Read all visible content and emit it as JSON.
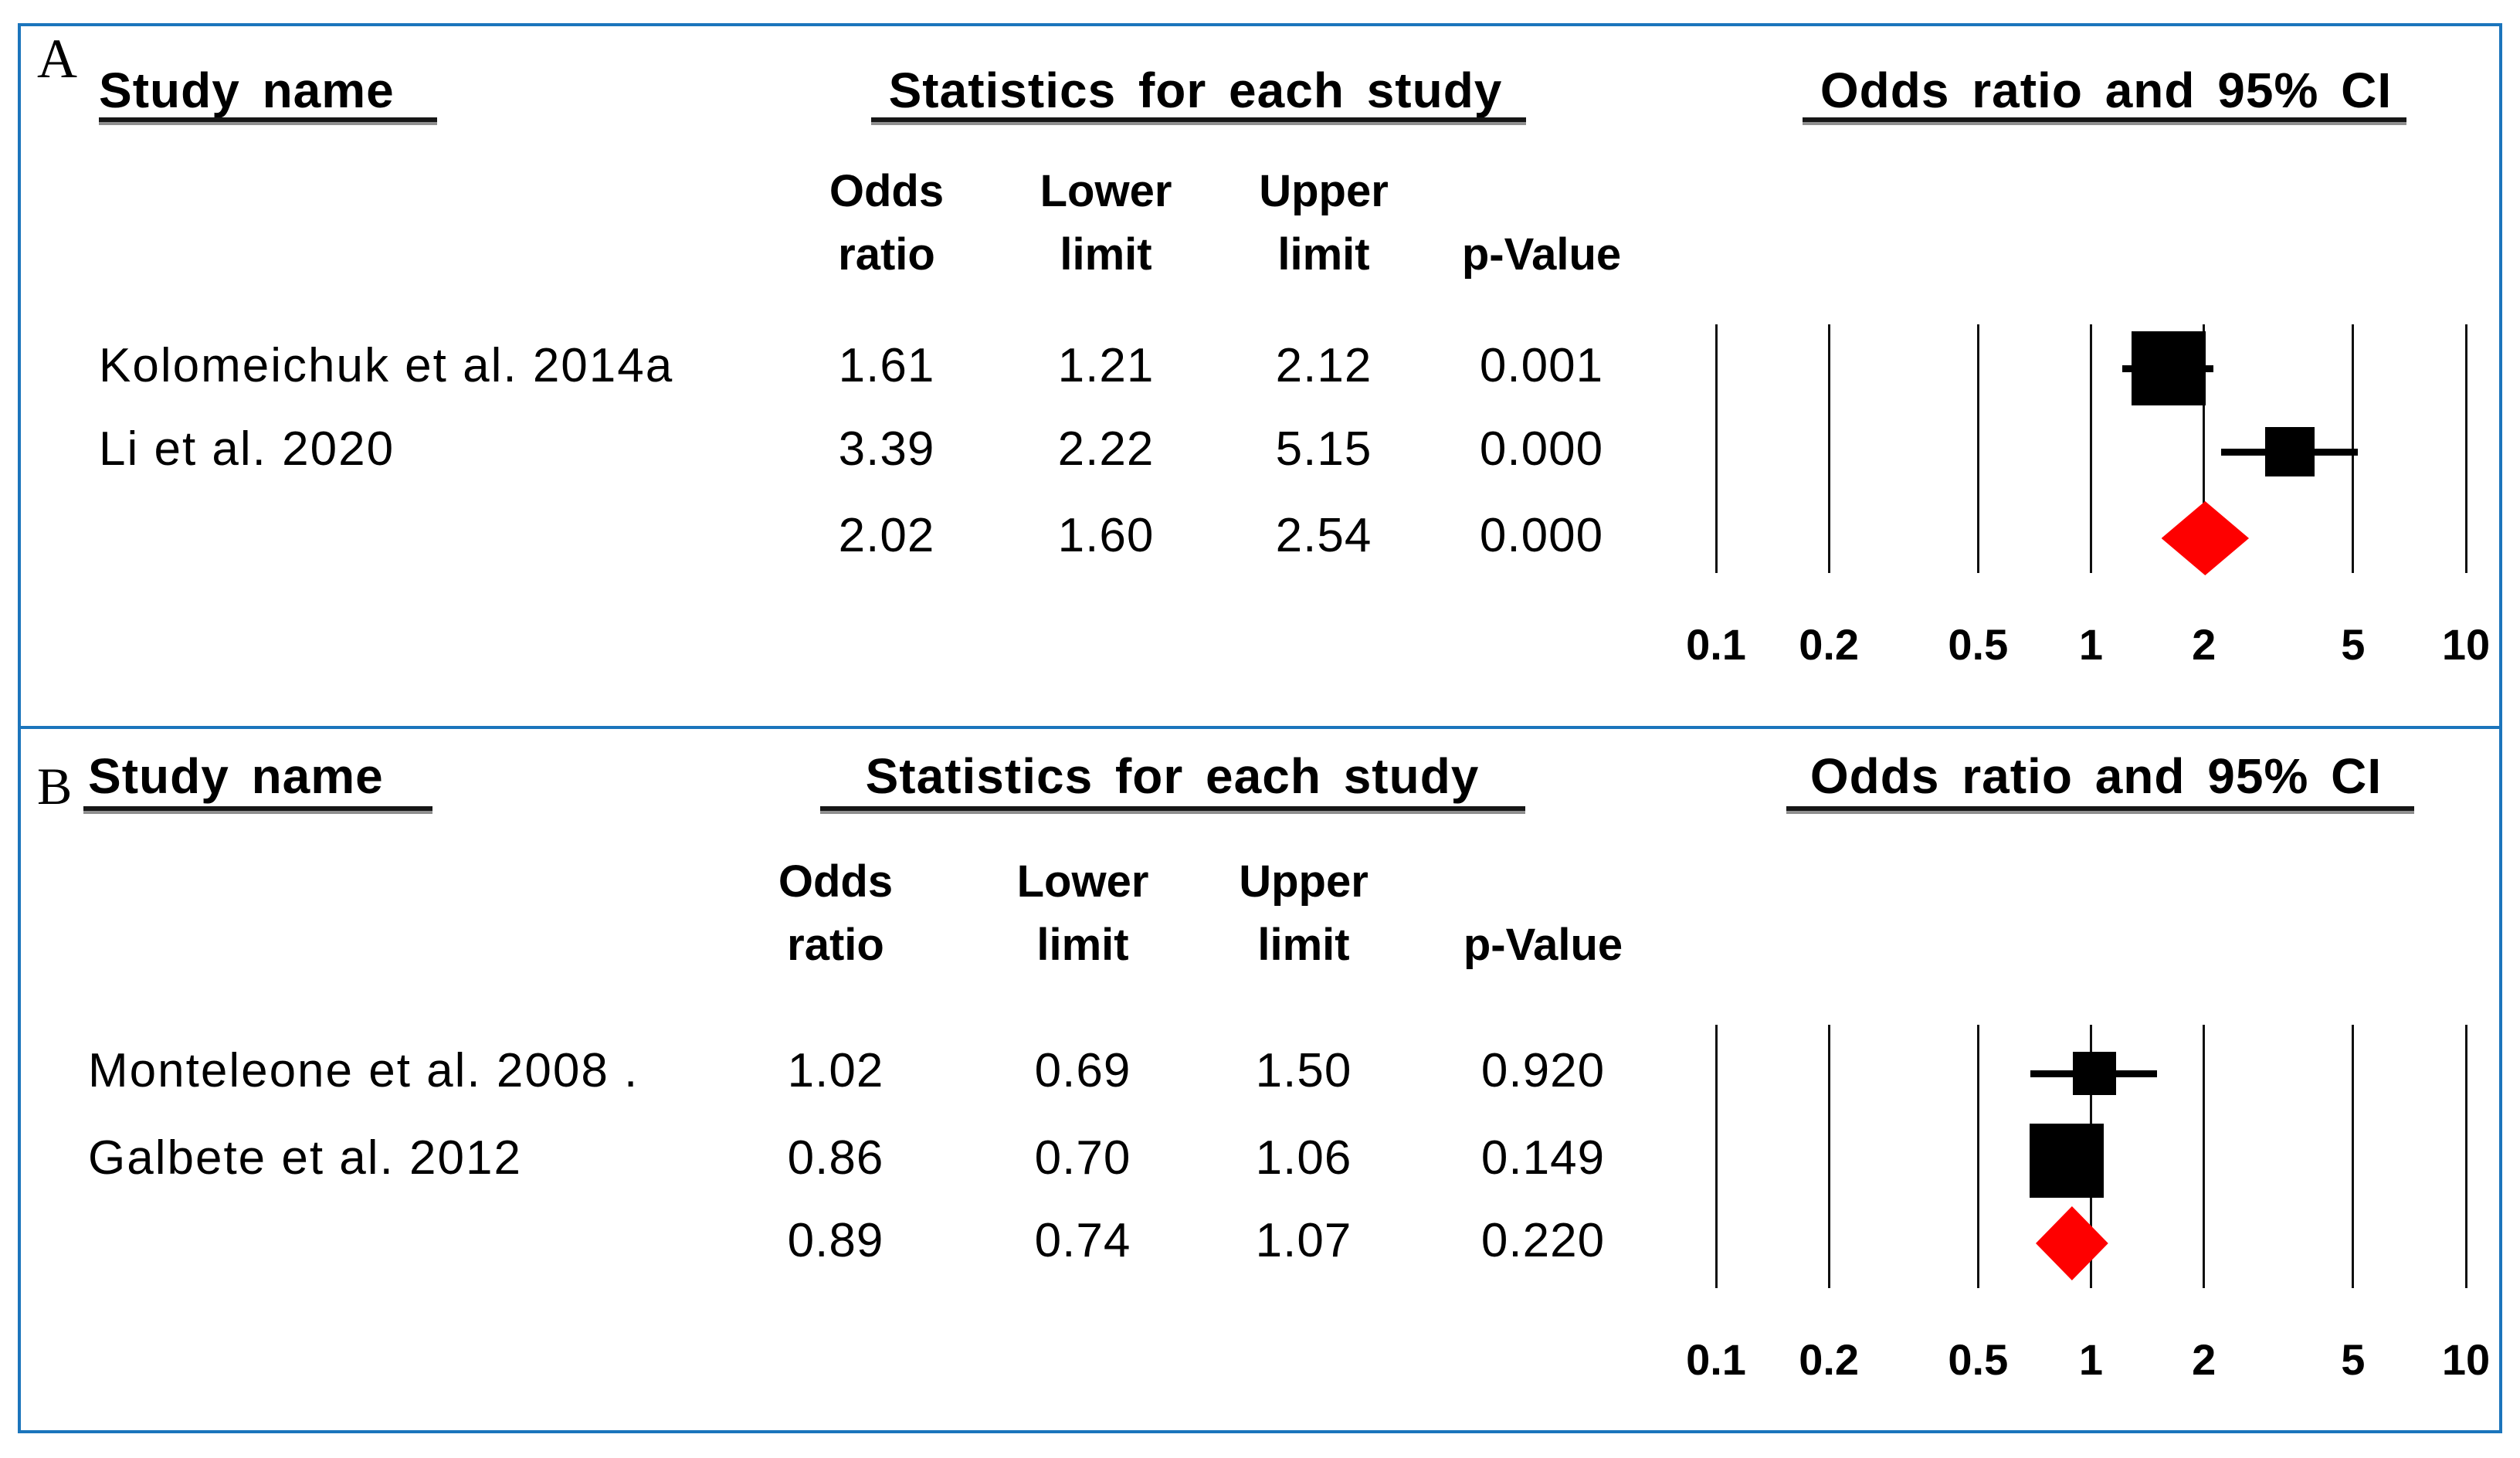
{
  "figure": {
    "background": "#ffffff",
    "border_color": "#1b75bc",
    "marker_color": "#000000",
    "summary_color": "#fe0000",
    "panels": [
      {
        "label": "A",
        "study_header": "Study name",
        "stats_header": "Statistics for each study",
        "plot_header": "Odds ratio and 95% CI",
        "col1_line1": "Odds",
        "col1_line2": "ratio",
        "col2_line1": "Lower",
        "col2_line2": "limit",
        "col3_line1": "Upper",
        "col3_line2": "limit",
        "col4_line2": "p-Value",
        "rows": [
          {
            "study": "Kolomeichuk et al. 2014a",
            "or": "1.61",
            "lower": "1.21",
            "upper": "2.12",
            "p": "0.001"
          },
          {
            "study": "Li et al. 2020",
            "or": "3.39",
            "lower": "2.22",
            "upper": "5.15",
            "p": "0.000"
          },
          {
            "study": "",
            "or": "2.02",
            "lower": "1.60",
            "upper": "2.54",
            "p": "0.000"
          }
        ]
      },
      {
        "label": "B",
        "study_header": "Study name",
        "stats_header": "Statistics for each study",
        "plot_header": "Odds ratio and 95% CI",
        "col1_line1": "Odds",
        "col1_line2": "ratio",
        "col2_line1": "Lower",
        "col2_line2": "limit",
        "col3_line1": "Upper",
        "col3_line2": "limit",
        "col4_line2": "p-Value",
        "rows": [
          {
            "study": "Monteleone et al. 2008 .",
            "or": "1.02",
            "lower": "0.69",
            "upper": "1.50",
            "p": "0.920"
          },
          {
            "study": "Galbete et al. 2012",
            "or": "0.86",
            "lower": "0.70",
            "upper": "1.06",
            "p": "0.149"
          },
          {
            "study": "",
            "or": "0.89",
            "lower": "0.74",
            "upper": "1.07",
            "p": "0.220"
          }
        ]
      }
    ]
  },
  "chart_data": [
    {
      "type": "forest",
      "panel": "A",
      "title": "Odds ratio and 95% CI",
      "x_scale": "log10",
      "x_ticks": [
        0.1,
        0.2,
        0.5,
        1,
        2,
        5,
        10
      ],
      "x_tick_labels": [
        "0.1",
        "0.2",
        "0.5",
        "1",
        "2",
        "5",
        "10"
      ],
      "xlim": [
        0.1,
        10
      ],
      "studies": [
        {
          "name": "Kolomeichuk et al. 2014a",
          "odds_ratio": 1.61,
          "ci_lower": 1.21,
          "ci_upper": 2.12,
          "p_value": 0.001,
          "marker": "square",
          "marker_px": 96
        },
        {
          "name": "Li et al. 2020",
          "odds_ratio": 3.39,
          "ci_lower": 2.22,
          "ci_upper": 5.15,
          "p_value": 0.0,
          "marker": "square",
          "marker_px": 64
        }
      ],
      "summary": {
        "odds_ratio": 2.02,
        "ci_lower": 1.6,
        "ci_upper": 2.54,
        "p_value": 0.0,
        "marker": "diamond",
        "color": "#fe0000"
      }
    },
    {
      "type": "forest",
      "panel": "B",
      "title": "Odds ratio and 95% CI",
      "x_scale": "log10",
      "x_ticks": [
        0.1,
        0.2,
        0.5,
        1,
        2,
        5,
        10
      ],
      "x_tick_labels": [
        "0.1",
        "0.2",
        "0.5",
        "1",
        "2",
        "5",
        "10"
      ],
      "xlim": [
        0.1,
        10
      ],
      "studies": [
        {
          "name": "Monteleone et al. 2008 .",
          "odds_ratio": 1.02,
          "ci_lower": 0.69,
          "ci_upper": 1.5,
          "p_value": 0.92,
          "marker": "square",
          "marker_px": 56
        },
        {
          "name": "Galbete et al. 2012",
          "odds_ratio": 0.86,
          "ci_lower": 0.7,
          "ci_upper": 1.06,
          "p_value": 0.149,
          "marker": "square",
          "marker_px": 96
        }
      ],
      "summary": {
        "odds_ratio": 0.89,
        "ci_lower": 0.74,
        "ci_upper": 1.07,
        "p_value": 0.22,
        "marker": "diamond",
        "color": "#fe0000"
      }
    }
  ]
}
